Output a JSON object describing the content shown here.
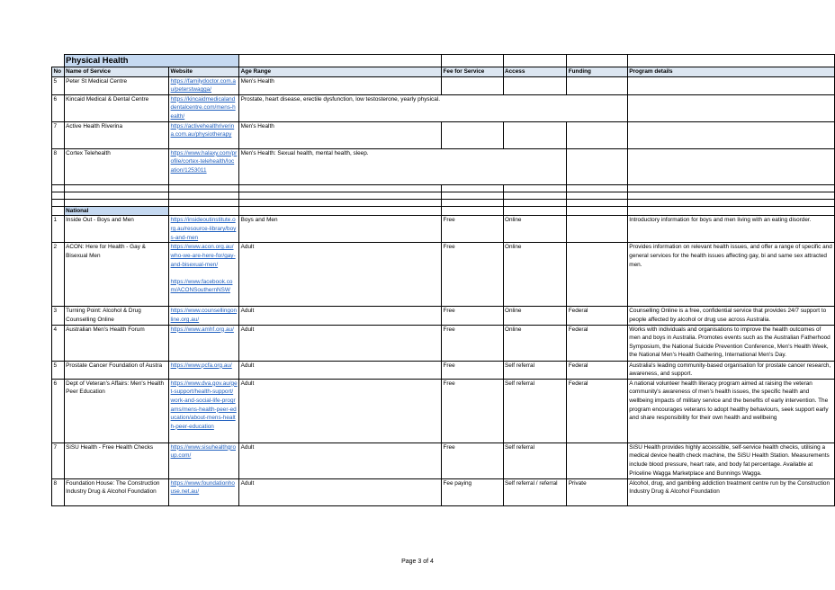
{
  "title": "Physical Health",
  "headers": {
    "no": "No",
    "name": "Name of Service",
    "website": "Website",
    "age": "Age Range",
    "fee": "Fee for Service",
    "access": "Access",
    "funding": "Funding",
    "program": "Program details"
  },
  "local_rows": [
    {
      "no": "5",
      "name": "Peter St Medical Centre",
      "website": "https://familydoctor.com.au/peterstwagga/",
      "age": "Men's Health",
      "fee": "",
      "access": "",
      "funding": "",
      "program": ""
    },
    {
      "no": "6",
      "name": "Kincaid Medical & Dental Centre",
      "website": "https://kincaidmedicalanddentalcentre.com/mens-health/",
      "age": "Prostate, heart disease, erectile dysfunction, low testosterone, yearly physical.",
      "fee": "",
      "access": "",
      "funding": "",
      "program": ""
    },
    {
      "no": "7",
      "name": "Active Health Riverina",
      "website": "https://activehealthriverina.com.au/physiotherapy",
      "age": "Men's Health",
      "fee": "",
      "access": "",
      "funding": "",
      "program": ""
    },
    {
      "no": "8",
      "name": "Cortex Telehealth",
      "website": "https://www.halaxy.com/profile/cortex-telehealth/location/1253011",
      "age": "Men's Health: Sexual health, mental health, sleep.",
      "fee": "",
      "access": "",
      "funding": "",
      "program": ""
    }
  ],
  "section_label": "National",
  "national_rows": [
    {
      "no": "1",
      "name": "Inside Out - Boys and Men",
      "website": "https://insideoutinstitute.org.au/resource-library/boys-and-men",
      "website2": "",
      "age": "Boys and Men",
      "fee": "Free",
      "access": "Online",
      "funding": "",
      "program": "Introductory information for boys and men living with an eating disorder."
    },
    {
      "no": "2",
      "name": "ACON: Here for Health - Gay & Bisexual Men",
      "website": "https://www.acon.org.au/who-we-are-here-for/gay-and-bisexual-men/",
      "website2": "https://www.facebook.com/ACONSouthernNSW",
      "age": "Adult",
      "fee": "Free",
      "access": "Online",
      "funding": "",
      "program": "Provides information on relevant health issues, and offer a range of specific and general services for the health issues affecting gay, bi and same sex attracted men."
    },
    {
      "no": "3",
      "name": "Turning Point: Alcohol & Drug Counselling Online",
      "website": "https://www.counsellingonline.org.au/",
      "website2": "",
      "age": "Adult",
      "fee": "Free",
      "access": "Online",
      "funding": "Federal",
      "program": "Counselling Online is a free, confidential service that provides 24/7 support to people affected by alcohol or drug use across Australia."
    },
    {
      "no": "4",
      "name": "Australian Men's Health Forum",
      "website": "https://www.amhf.org.au/",
      "website2": "",
      "age": "Adult",
      "fee": "Free",
      "access": "Online",
      "funding": "Federal",
      "program": "Works with individuals and organisations to improve the health outcomes of men and boys in Australia. Promotes events such as the Australian Fatherhood Symposium, the National Suicide Prevention Conference, Men's Health Week, the National Men's Health Gathering, International Men's Day."
    },
    {
      "no": "5",
      "name": "Prostate Cancer Foundation of Austra",
      "website": "https://www.pcfa.org.au/",
      "website2": "",
      "age": "Adult",
      "fee": "Free",
      "access": "Self referral",
      "funding": "Federal",
      "program": "Australia's leading community-based organisation for prostate cancer research, awareness, and support."
    },
    {
      "no": "6",
      "name": "Dept of Veteran's Affairs: Men's Health Peer Education",
      "website": "https://www.dva.gov.au/get-support/health-support/work-and-social-life-programs/mens-health-peer-education/about-mens-health-peer-education",
      "website2": "",
      "age": "Adult",
      "fee": "Free",
      "access": "Self referral",
      "funding": "Federal",
      "program": "A national volunteer health literacy program aimed at raising the veteran community's awareness of men's health issues, the specific health and wellbeing impacts of military service and the benefits of early intervention. The program encourages veterans to adopt healthy behaviours, seek support early and share responsibility for their own health and wellbeing"
    },
    {
      "no": "7",
      "name": "SiSU Health - Free Health Checks",
      "website": "https://www.sisuhealthgroup.com/",
      "website2": "",
      "age": "Adult",
      "fee": "Free",
      "access": "Self referral",
      "funding": "",
      "program": "SiSU Health provides highly accessible, self-service health checks, utilising a medical device health check machine, the SiSU Health Station. Measurements include blood pressure, heart rate, and body fat percentage. Available at Priceline Wagga Marketplace and Bunnings Wagga."
    },
    {
      "no": "8",
      "name": "Foundation House: The Construction Industry Drug & Alcohol Foundation",
      "website": "https://www.foundationhouse.net.au/",
      "website2": "",
      "age": "Adult",
      "fee": "Fee paying",
      "access": "Self referral / referral",
      "funding": "Private",
      "program": "Alcohol, drug, and gambling addiction treatment centre run by the Construction Industry Drug & Alcohol Foundation"
    }
  ],
  "footer": "Page 3 of 4"
}
